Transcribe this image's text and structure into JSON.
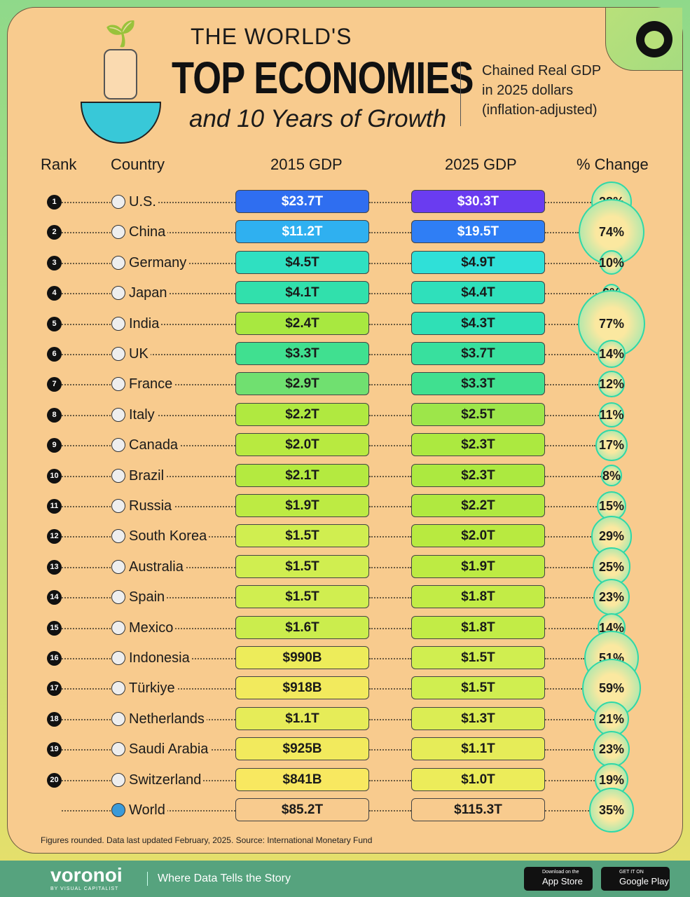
{
  "header": {
    "line1": "THE WORLD'S",
    "line2": "TOP ECONOMIES",
    "line3": "and 10 Years of Growth",
    "subtitle": [
      "Chained Real GDP",
      "in 2025 dollars",
      "(inflation-adjusted)"
    ]
  },
  "columns": {
    "rank": "Rank",
    "country": "Country",
    "gdp2015": "2015 GDP",
    "gdp2025": "2025 GDP",
    "change": "% Change"
  },
  "chart_data": {
    "type": "table",
    "title": "THE WORLD'S TOP ECONOMIES and 10 Years of Growth",
    "rows": [
      {
        "rank": "1",
        "country": "U.S.",
        "gdp2015": "$23.7T",
        "gdp2025": "$30.3T",
        "change": "28%",
        "v15": 23.7,
        "v25": 30.3,
        "pct": 28
      },
      {
        "rank": "2",
        "country": "China",
        "gdp2015": "$11.2T",
        "gdp2025": "$19.5T",
        "change": "74%",
        "v15": 11.2,
        "v25": 19.5,
        "pct": 74
      },
      {
        "rank": "3",
        "country": "Germany",
        "gdp2015": "$4.5T",
        "gdp2025": "$4.9T",
        "change": "10%",
        "v15": 4.5,
        "v25": 4.9,
        "pct": 10
      },
      {
        "rank": "4",
        "country": "Japan",
        "gdp2015": "$4.1T",
        "gdp2025": "$4.4T",
        "change": "6%",
        "v15": 4.1,
        "v25": 4.4,
        "pct": 6
      },
      {
        "rank": "5",
        "country": "India",
        "gdp2015": "$2.4T",
        "gdp2025": "$4.3T",
        "change": "77%",
        "v15": 2.4,
        "v25": 4.3,
        "pct": 77
      },
      {
        "rank": "6",
        "country": "UK",
        "gdp2015": "$3.3T",
        "gdp2025": "$3.7T",
        "change": "14%",
        "v15": 3.3,
        "v25": 3.7,
        "pct": 14
      },
      {
        "rank": "7",
        "country": "France",
        "gdp2015": "$2.9T",
        "gdp2025": "$3.3T",
        "change": "12%",
        "v15": 2.9,
        "v25": 3.3,
        "pct": 12
      },
      {
        "rank": "8",
        "country": "Italy",
        "gdp2015": "$2.2T",
        "gdp2025": "$2.5T",
        "change": "11%",
        "v15": 2.2,
        "v25": 2.5,
        "pct": 11
      },
      {
        "rank": "9",
        "country": "Canada",
        "gdp2015": "$2.0T",
        "gdp2025": "$2.3T",
        "change": "17%",
        "v15": 2.0,
        "v25": 2.3,
        "pct": 17
      },
      {
        "rank": "10",
        "country": "Brazil",
        "gdp2015": "$2.1T",
        "gdp2025": "$2.3T",
        "change": "8%",
        "v15": 2.1,
        "v25": 2.3,
        "pct": 8
      },
      {
        "rank": "11",
        "country": "Russia",
        "gdp2015": "$1.9T",
        "gdp2025": "$2.2T",
        "change": "15%",
        "v15": 1.9,
        "v25": 2.2,
        "pct": 15
      },
      {
        "rank": "12",
        "country": "South Korea",
        "gdp2015": "$1.5T",
        "gdp2025": "$2.0T",
        "change": "29%",
        "v15": 1.5,
        "v25": 2.0,
        "pct": 29
      },
      {
        "rank": "13",
        "country": "Australia",
        "gdp2015": "$1.5T",
        "gdp2025": "$1.9T",
        "change": "25%",
        "v15": 1.5,
        "v25": 1.9,
        "pct": 25
      },
      {
        "rank": "14",
        "country": "Spain",
        "gdp2015": "$1.5T",
        "gdp2025": "$1.8T",
        "change": "23%",
        "v15": 1.5,
        "v25": 1.8,
        "pct": 23
      },
      {
        "rank": "15",
        "country": "Mexico",
        "gdp2015": "$1.6T",
        "gdp2025": "$1.8T",
        "change": "14%",
        "v15": 1.6,
        "v25": 1.8,
        "pct": 14
      },
      {
        "rank": "16",
        "country": "Indonesia",
        "gdp2015": "$990B",
        "gdp2025": "$1.5T",
        "change": "51%",
        "v15": 0.99,
        "v25": 1.5,
        "pct": 51
      },
      {
        "rank": "17",
        "country": "Türkiye",
        "gdp2015": "$918B",
        "gdp2025": "$1.5T",
        "change": "59%",
        "v15": 0.918,
        "v25": 1.5,
        "pct": 59
      },
      {
        "rank": "18",
        "country": "Netherlands",
        "gdp2015": "$1.1T",
        "gdp2025": "$1.3T",
        "change": "21%",
        "v15": 1.1,
        "v25": 1.3,
        "pct": 21
      },
      {
        "rank": "19",
        "country": "Saudi Arabia",
        "gdp2015": "$925B",
        "gdp2025": "$1.1T",
        "change": "23%",
        "v15": 0.925,
        "v25": 1.1,
        "pct": 23
      },
      {
        "rank": "20",
        "country": "Switzerland",
        "gdp2015": "$841B",
        "gdp2025": "$1.0T",
        "change": "19%",
        "v15": 0.841,
        "v25": 1.0,
        "pct": 19
      },
      {
        "rank": "",
        "country": "World",
        "gdp2015": "$85.2T",
        "gdp2025": "$115.3T",
        "change": "35%",
        "v15": 85.2,
        "v25": 115.3,
        "pct": 35
      }
    ]
  },
  "footnote": "Figures rounded. Data last updated February, 2025. Source: International Monetary Fund",
  "footer": {
    "brand": "voronoi",
    "brand_sub": "BY VISUAL CAPITALIST",
    "tagline": "Where Data Tells the Story",
    "app_store_small": "Download on the",
    "app_store": "App Store",
    "google_small": "GET IT ON",
    "google": "Google Play"
  },
  "colors": {
    "card": "#f8cb8e",
    "footer": "#56a37e",
    "bubble": "#2fd8a8"
  }
}
